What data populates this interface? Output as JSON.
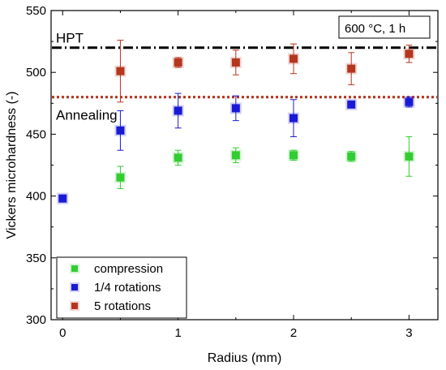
{
  "chart_data": {
    "type": "scatter",
    "xlabel": "Radius (mm)",
    "ylabel": "Vickers microhardness (-)",
    "xlim": [
      -0.1,
      3.25
    ],
    "ylim": [
      300,
      550
    ],
    "xticks": [
      0,
      0.5,
      1,
      1.5,
      2,
      2.5,
      3
    ],
    "xtick_labels": [
      "0",
      "",
      "1",
      "",
      "2",
      "",
      "3"
    ],
    "yticks": [
      300,
      350,
      400,
      450,
      500,
      550
    ],
    "ytick_labels": [
      "300",
      "350",
      "400",
      "450",
      "500",
      "550"
    ],
    "grid": false,
    "legend_position": "bottom-left",
    "series": [
      {
        "name": "compression",
        "color": "#33cc33",
        "marker": "square",
        "x": [
          0.5,
          1,
          1.5,
          2,
          2.5,
          3
        ],
        "y": [
          415,
          431,
          433,
          433,
          432,
          432
        ],
        "err": [
          9,
          6,
          6,
          4,
          4,
          16
        ]
      },
      {
        "name": "1/4 rotations",
        "color": "#1a1ad6",
        "marker": "square",
        "x": [
          0,
          0.5,
          1,
          1.5,
          2,
          2.5,
          3
        ],
        "y": [
          398,
          453,
          469,
          471,
          463,
          474,
          476
        ],
        "err": [
          0,
          16,
          14,
          10,
          15,
          0,
          4
        ]
      },
      {
        "name": "5 rotations",
        "color": "#b5361f",
        "marker": "square",
        "x": [
          0.5,
          1,
          1.5,
          2,
          2.5,
          3
        ],
        "y": [
          501,
          508,
          508,
          511,
          503,
          515
        ],
        "err": [
          25,
          4,
          10,
          12,
          13,
          7
        ]
      }
    ],
    "reference_lines": [
      {
        "label": "HPT",
        "y": 520,
        "color": "#000000",
        "style": "dash-dot"
      },
      {
        "label": "Annealing",
        "y": 480,
        "color": "#b5361f",
        "style": "dotted"
      }
    ],
    "annotation_box": "600 °C, 1 h"
  }
}
